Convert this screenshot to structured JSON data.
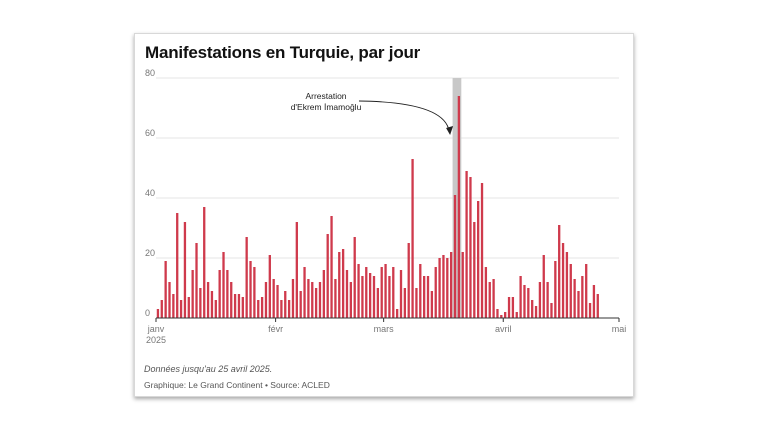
{
  "title": "Manifestations en Turquie, par jour",
  "note": "Données jusqu'au 25 avril 2025.",
  "credit": "Graphique: Le Grand Continent • Source: ACLED",
  "colors": {
    "bar": "#cf3a4c",
    "highlight": "#c8c8c8",
    "grid": "#e5e5e5",
    "axis": "#333333"
  },
  "chart_data": {
    "type": "bar",
    "title": "Manifestations en Turquie, par jour",
    "xlabel": "",
    "ylabel": "",
    "ylim": [
      0,
      80
    ],
    "yticks": [
      "0",
      "20",
      "40",
      "60",
      "80"
    ],
    "xticks": [
      {
        "label": "janv",
        "sublabel": "2025",
        "date": "2025-01-01"
      },
      {
        "label": "févr",
        "sublabel": "",
        "date": "2025-02-01"
      },
      {
        "label": "mars",
        "sublabel": "",
        "date": "2025-03-01"
      },
      {
        "label": "avril",
        "sublabel": "",
        "date": "2025-04-01"
      },
      {
        "label": "mai",
        "sublabel": "",
        "date": "2025-05-01"
      }
    ],
    "x_start": "2025-01-01",
    "x_end": "2025-04-25",
    "values": [
      3,
      6,
      19,
      12,
      8,
      35,
      6,
      32,
      7,
      16,
      25,
      10,
      37,
      12,
      9,
      6,
      16,
      22,
      16,
      12,
      8,
      8,
      7,
      27,
      19,
      17,
      6,
      7,
      12,
      21,
      13,
      11,
      6,
      9,
      6,
      13,
      32,
      9,
      17,
      13,
      12,
      10,
      12,
      16,
      28,
      34,
      13,
      22,
      23,
      16,
      12,
      27,
      18,
      14,
      17,
      15,
      14,
      10,
      17,
      18,
      14,
      17,
      3,
      16,
      10,
      25,
      53,
      10,
      18,
      14,
      14,
      9,
      17,
      20,
      21,
      20,
      22,
      41,
      74,
      22,
      49,
      47,
      32,
      39,
      45,
      17,
      12,
      13,
      3,
      1,
      2,
      7,
      7,
      2,
      14,
      11,
      10,
      6,
      4,
      12,
      21,
      12,
      5,
      19,
      31,
      25,
      22,
      18,
      13,
      9,
      14,
      18,
      5,
      11,
      8
    ],
    "highlight": {
      "from": "2025-03-19",
      "to": "2025-03-20"
    },
    "annotation": {
      "lines": [
        "Arrestation",
        "d'Ekrem İmamoğlu"
      ],
      "target": "2025-03-19"
    },
    "grid": true,
    "legend": "none"
  }
}
